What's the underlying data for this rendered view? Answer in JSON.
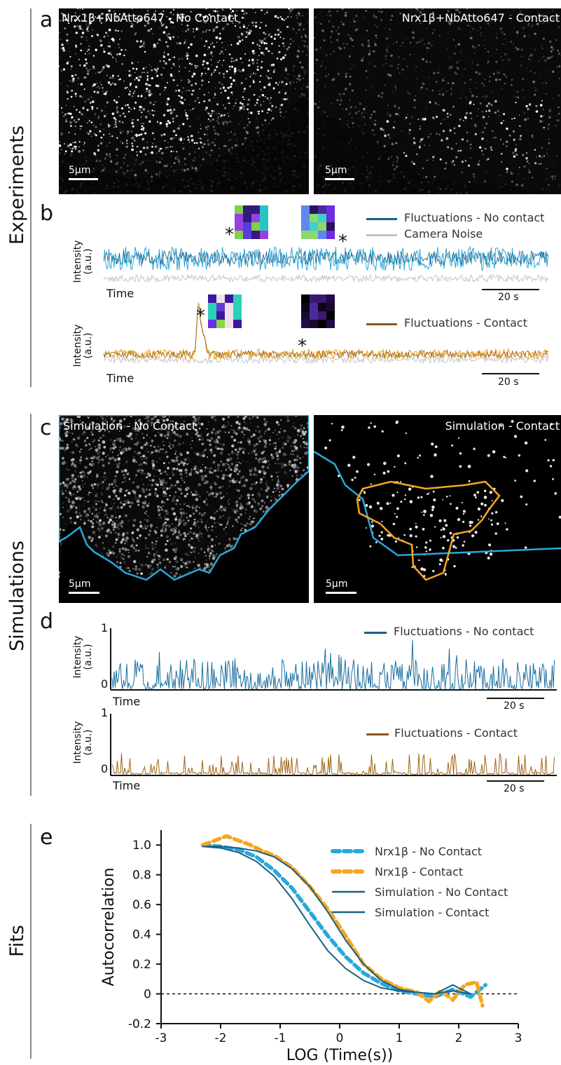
{
  "sections": {
    "experiments": "Experiments",
    "simulations": "Simulations",
    "fits": "Fits"
  },
  "panels": {
    "a": {
      "letter": "a",
      "left_title": "Nrx1β+NbAtto647 -  No Contact",
      "right_title": "Nrx1β+NbAtto647  - Contact",
      "scalebar": "5μm"
    },
    "b": {
      "letter": "b",
      "ylabel_line1": "Intensity",
      "ylabel_line2": "(a.u.)",
      "xlabel": "Time",
      "scalebar": "20 s",
      "legend_top": [
        "Fluctuations - No contact",
        "Camera Noise"
      ],
      "legend_bottom": [
        "Fluctuations - Contact"
      ],
      "star": "*"
    },
    "c": {
      "letter": "c",
      "left_title": "Simulation - No Contact",
      "right_title": "Simulation - Contact",
      "scalebar": "5μm"
    },
    "d": {
      "letter": "d",
      "ylabel_line1": "Intensity",
      "ylabel_line2": "(a.u.)",
      "xlabel": "Time",
      "scalebar": "20 s",
      "ytick_top": "1",
      "ytick_bottom": "0",
      "legend_top": "Fluctuations - No contact",
      "legend_bottom": "Fluctuations - Contact"
    },
    "e": {
      "letter": "e"
    }
  },
  "colors": {
    "blue_dark": "#1a5f86",
    "blue_light": "#29a8dc",
    "orange": "#f5a623",
    "brown": "#8b5a1b",
    "gray": "#c4c4c4"
  },
  "chart_data": {
    "type": "line",
    "xlabel": "LOG (Time(s))",
    "ylabel": "Autocorrelation",
    "xlim": [
      -3,
      3
    ],
    "ylim": [
      -0.2,
      1.1
    ],
    "xticks": [
      "-3",
      "-2",
      "-1",
      "0",
      "1",
      "2",
      "3"
    ],
    "yticks": [
      "-0.2",
      "0",
      "0.2",
      "0.4",
      "0.6",
      "0.8",
      "1.0"
    ],
    "zero_line": "dashed",
    "legend_position": "top-right",
    "series": [
      {
        "name": "Nrx1β - No Contact",
        "style": "dashed",
        "color": "#29a8dc",
        "x": [
          -2.3,
          -2.0,
          -1.7,
          -1.4,
          -1.1,
          -0.8,
          -0.5,
          -0.2,
          0.1,
          0.4,
          0.7,
          1.0,
          1.3,
          1.6,
          1.9,
          2.2,
          2.45
        ],
        "y": [
          1.0,
          0.99,
          0.97,
          0.92,
          0.83,
          0.71,
          0.55,
          0.39,
          0.25,
          0.14,
          0.07,
          0.02,
          0.0,
          -0.02,
          0.03,
          -0.02,
          0.06
        ]
      },
      {
        "name": "Nrx1β - Contact",
        "style": "dashed",
        "color": "#f5a623",
        "x": [
          -2.3,
          -2.1,
          -1.9,
          -1.7,
          -1.5,
          -1.3,
          -1.1,
          -0.8,
          -0.5,
          -0.2,
          0.1,
          0.4,
          0.7,
          1.0,
          1.3,
          1.5,
          1.7,
          1.9,
          2.1,
          2.3,
          2.4
        ],
        "y": [
          1.0,
          1.03,
          1.06,
          1.03,
          1.0,
          0.96,
          0.93,
          0.85,
          0.72,
          0.57,
          0.39,
          0.2,
          0.1,
          0.04,
          0.01,
          -0.05,
          0.02,
          -0.04,
          0.06,
          0.08,
          -0.08
        ]
      },
      {
        "name": "Simulation - No Contact",
        "style": "solid",
        "color": "#1a5f86",
        "x": [
          -2.3,
          -2.0,
          -1.7,
          -1.4,
          -1.1,
          -0.8,
          -0.5,
          -0.2,
          0.1,
          0.4,
          0.7,
          1.0,
          1.3,
          1.6,
          1.9,
          2.2
        ],
        "y": [
          0.99,
          0.98,
          0.95,
          0.89,
          0.79,
          0.64,
          0.46,
          0.29,
          0.17,
          0.09,
          0.04,
          0.02,
          0.01,
          0.0,
          0.06,
          0.0
        ]
      },
      {
        "name": "Simulation - Contact",
        "style": "solid",
        "color": "#1a5f86",
        "x": [
          -2.3,
          -2.0,
          -1.7,
          -1.4,
          -1.1,
          -0.8,
          -0.5,
          -0.2,
          0.1,
          0.4,
          0.7,
          1.0,
          1.3,
          1.6,
          1.9,
          2.2
        ],
        "y": [
          0.99,
          0.99,
          0.98,
          0.96,
          0.92,
          0.84,
          0.72,
          0.55,
          0.36,
          0.2,
          0.09,
          0.03,
          0.01,
          0.0,
          0.02,
          0.0
        ]
      }
    ]
  }
}
